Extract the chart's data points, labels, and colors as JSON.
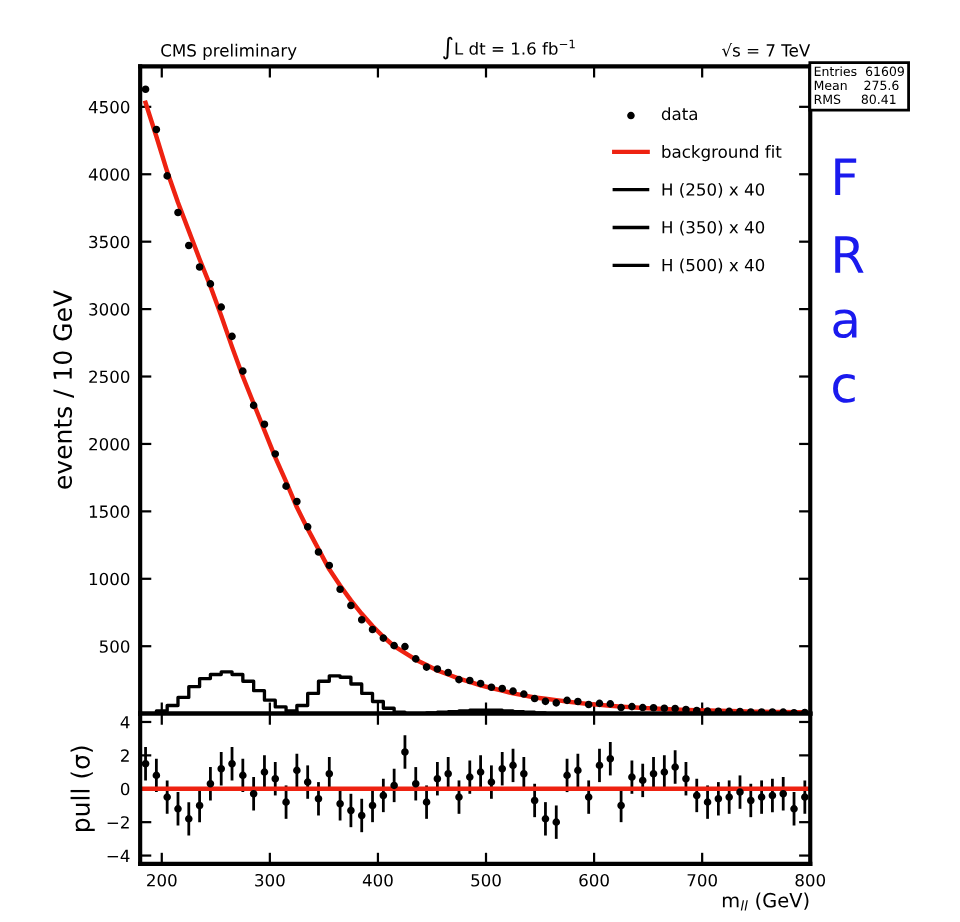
{
  "chart_data": [
    {
      "type": "scatter",
      "ylabel": "events / 10 GeV",
      "x": [
        185,
        195,
        205,
        215,
        225,
        235,
        245,
        255,
        265,
        275,
        285,
        295,
        305,
        315,
        325,
        335,
        345,
        355,
        365,
        375,
        385,
        395,
        405,
        415,
        425,
        435,
        445,
        455,
        465,
        475,
        485,
        495,
        505,
        515,
        525,
        535,
        545,
        555,
        565,
        575,
        585,
        595,
        605,
        615,
        625,
        635,
        645,
        655,
        665,
        675,
        685,
        695,
        705,
        715,
        725,
        735,
        745,
        755,
        765,
        775,
        785,
        795
      ],
      "series": [
        {
          "name": "data",
          "type": "scatter",
          "color": "#000000",
          "marker": "circle",
          "values": [
            4630,
            4332,
            3988,
            3716,
            3472,
            3312,
            3187,
            3015,
            2798,
            2540,
            2286,
            2146,
            1926,
            1687,
            1573,
            1385,
            1199,
            1099,
            922,
            802,
            696,
            624,
            560,
            504,
            497,
            406,
            345,
            331,
            305,
            252,
            246,
            224,
            196,
            186,
            167,
            145,
            112,
            91,
            80,
            98,
            90,
            68,
            76,
            72,
            45,
            52,
            45,
            44,
            40,
            38,
            31,
            23,
            19,
            18,
            17,
            16,
            12,
            12,
            12,
            11,
            7,
            8
          ]
        },
        {
          "name": "background fit",
          "type": "line",
          "color": "#ee2211",
          "values": [
            4530,
            4280,
            4020,
            3790,
            3580,
            3370,
            3170,
            2950,
            2720,
            2500,
            2300,
            2100,
            1900,
            1720,
            1530,
            1370,
            1220,
            1070,
            950,
            840,
            740,
            650,
            570,
            500,
            450,
            400,
            360,
            320,
            290,
            260,
            235,
            210,
            190,
            170,
            150,
            135,
            120,
            110,
            100,
            90,
            80,
            72,
            65,
            58,
            52,
            47,
            42,
            38,
            34,
            31,
            28,
            25,
            23,
            21,
            19,
            17,
            15,
            14,
            13,
            12,
            11,
            10
          ]
        },
        {
          "name": "H (250) x 40",
          "type": "step",
          "color": "#000000",
          "x": [
            190,
            200,
            210,
            220,
            230,
            240,
            250,
            260,
            270,
            280,
            290,
            300,
            310,
            320,
            330
          ],
          "values": [
            0,
            20,
            60,
            120,
            200,
            260,
            290,
            310,
            290,
            240,
            170,
            100,
            50,
            20,
            0
          ]
        },
        {
          "name": "H (350) x 40",
          "type": "step",
          "color": "#000000",
          "x": [
            320,
            330,
            340,
            350,
            360,
            370,
            380,
            390,
            400,
            410,
            420,
            430
          ],
          "values": [
            10,
            60,
            150,
            240,
            280,
            270,
            220,
            150,
            90,
            40,
            10,
            0
          ]
        },
        {
          "name": "H (500) x 40",
          "type": "step",
          "color": "#000000",
          "x": [
            440,
            450,
            460,
            470,
            480,
            490,
            500,
            510,
            520,
            530,
            540,
            550,
            560
          ],
          "values": [
            0,
            5,
            10,
            15,
            20,
            25,
            25,
            25,
            20,
            15,
            10,
            5,
            0
          ]
        }
      ],
      "xlim": [
        180,
        800
      ],
      "xticks": [
        200,
        300,
        400,
        500,
        600,
        700,
        800
      ],
      "ylim": [
        0,
        4800
      ],
      "yticks": [
        500,
        1000,
        1500,
        2000,
        2500,
        3000,
        3500,
        4000,
        4500
      ],
      "tick_labels": "y",
      "legend": "top right",
      "annotations": [
        "CMS preliminary",
        "∫L dt = 1.6 fb$^{−1}$",
        "√s = 7 TeV",
        "Entries  61609\nMean    275.6\nRMS     80.41",
        "F",
        "R",
        "a",
        "c"
      ]
    },
    {
      "type": "scatter",
      "xlabel": "m$_{ll}$ (GeV)",
      "ylabel": "pull (σ)",
      "x": [
        185,
        195,
        205,
        215,
        225,
        235,
        245,
        255,
        265,
        275,
        285,
        295,
        305,
        315,
        325,
        335,
        345,
        355,
        365,
        375,
        385,
        395,
        405,
        415,
        425,
        435,
        445,
        455,
        465,
        475,
        485,
        495,
        505,
        515,
        525,
        535,
        545,
        555,
        565,
        575,
        585,
        595,
        605,
        615,
        625,
        635,
        645,
        655,
        665,
        675,
        685,
        695,
        705,
        715,
        725,
        735,
        745,
        755,
        765,
        775,
        785,
        795
      ],
      "series": [
        {
          "color": "#000000",
          "marker": "circle",
          "values": [
            1.5,
            0.8,
            -0.5,
            -1.2,
            -1.8,
            -1.0,
            0.3,
            1.2,
            1.5,
            0.8,
            -0.3,
            1.0,
            0.6,
            -0.8,
            1.1,
            0.4,
            -0.6,
            0.9,
            -0.9,
            -1.3,
            -1.6,
            -1.0,
            -0.4,
            0.2,
            2.2,
            0.3,
            -0.8,
            0.6,
            0.9,
            -0.5,
            0.7,
            1.0,
            0.4,
            1.2,
            1.4,
            0.9,
            -0.7,
            -1.8,
            -2.0,
            0.8,
            1.1,
            -0.5,
            1.4,
            1.8,
            -1.0,
            0.7,
            0.5,
            0.9,
            1.0,
            1.3,
            0.6,
            -0.4,
            -0.8,
            -0.6,
            -0.5,
            -0.2,
            -0.7,
            -0.5,
            -0.4,
            -0.3,
            -1.2,
            -0.5
          ],
          "errors": [
            1,
            1,
            1,
            1,
            1,
            1,
            1,
            1,
            1,
            1,
            1,
            1,
            1,
            1,
            1,
            1,
            1,
            1,
            1,
            1,
            1,
            1,
            1,
            1,
            1,
            1,
            1,
            1,
            1,
            1,
            1,
            1,
            1,
            1,
            1,
            1,
            1,
            1,
            1,
            1,
            1,
            1,
            1,
            1,
            1,
            1,
            1,
            1,
            1,
            1,
            1,
            1,
            1,
            1,
            1,
            1,
            1,
            1,
            1,
            1,
            1,
            1
          ]
        }
      ],
      "xlim": [
        180,
        800
      ],
      "xticks": [
        200,
        300,
        400,
        500,
        600,
        700,
        800
      ],
      "ylim": [
        -4.5,
        4.5
      ],
      "yticks": [
        {
          "value": -4,
          "label": "−4"
        },
        {
          "value": -2,
          "label": "−2"
        },
        0,
        2,
        4
      ],
      "ref_lines": [
        {
          "axis": "y",
          "value": 0,
          "color": "#ee2211"
        }
      ]
    }
  ]
}
